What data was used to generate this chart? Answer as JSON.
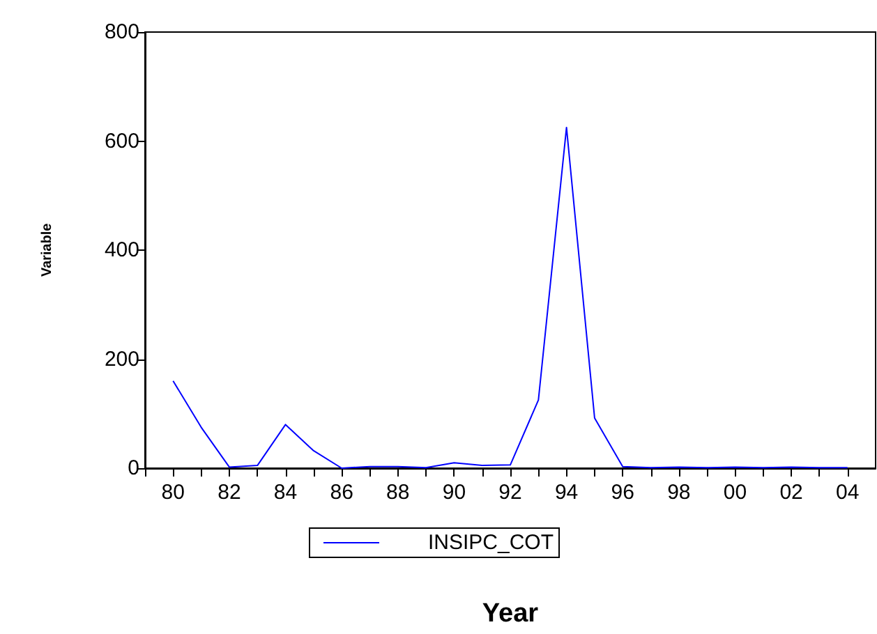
{
  "chart_data": {
    "type": "line",
    "xlabel": "Year",
    "ylabel": "Variable",
    "x": [
      1980,
      1981,
      1982,
      1983,
      1984,
      1985,
      1986,
      1987,
      1988,
      1989,
      1990,
      1991,
      1992,
      1993,
      1994,
      1995,
      1996,
      1997,
      1998,
      1999,
      2000,
      2001,
      2002,
      2003,
      2004
    ],
    "series": [
      {
        "name": "INSIPC_COT",
        "color": "#0000ff",
        "values": [
          160,
          75,
          2,
          5,
          80,
          32,
          0,
          3,
          3,
          1,
          10,
          5,
          6,
          125,
          625,
          92,
          3,
          1,
          2,
          1,
          2,
          1,
          2,
          1,
          1
        ]
      }
    ],
    "xlim": [
      1979,
      2005
    ],
    "xticks": [
      {
        "value": 1979,
        "label": null
      },
      {
        "value": 1980,
        "label": "80"
      },
      {
        "value": 1981,
        "label": null
      },
      {
        "value": 1982,
        "label": "82"
      },
      {
        "value": 1983,
        "label": null
      },
      {
        "value": 1984,
        "label": "84"
      },
      {
        "value": 1985,
        "label": null
      },
      {
        "value": 1986,
        "label": "86"
      },
      {
        "value": 1987,
        "label": null
      },
      {
        "value": 1988,
        "label": "88"
      },
      {
        "value": 1989,
        "label": null
      },
      {
        "value": 1990,
        "label": "90"
      },
      {
        "value": 1991,
        "label": null
      },
      {
        "value": 1992,
        "label": "92"
      },
      {
        "value": 1993,
        "label": null
      },
      {
        "value": 1994,
        "label": "94"
      },
      {
        "value": 1995,
        "label": null
      },
      {
        "value": 1996,
        "label": "96"
      },
      {
        "value": 1997,
        "label": null
      },
      {
        "value": 1998,
        "label": "98"
      },
      {
        "value": 1999,
        "label": null
      },
      {
        "value": 2000,
        "label": "00"
      },
      {
        "value": 2001,
        "label": null
      },
      {
        "value": 2002,
        "label": "02"
      },
      {
        "value": 2003,
        "label": null
      },
      {
        "value": 2004,
        "label": "04"
      }
    ],
    "ylim": [
      0,
      800
    ],
    "yticks": [
      0,
      200,
      400,
      600,
      800
    ],
    "grid": false,
    "legend": "bottom",
    "marker": "none",
    "line_style": "solid"
  }
}
